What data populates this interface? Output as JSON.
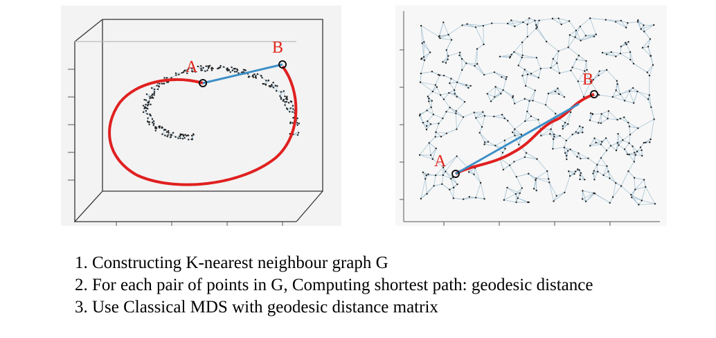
{
  "figure": {
    "left_panel": {
      "label_a": "A",
      "label_b": "B"
    },
    "right_panel": {
      "label_a": "A",
      "label_b": "B"
    },
    "colors": {
      "geodesic_path": "#e02020",
      "euclidean_line": "#3d8fc6",
      "graph_edges": "#a8c4d4",
      "nodes": "#222222",
      "label": "#e0251b"
    }
  },
  "steps": [
    "1. Constructing K-nearest neighbour graph G",
    "2. For each pair of points in G, Computing shortest path: geodesic distance",
    "3. Use Classical MDS with geodesic distance matrix"
  ]
}
